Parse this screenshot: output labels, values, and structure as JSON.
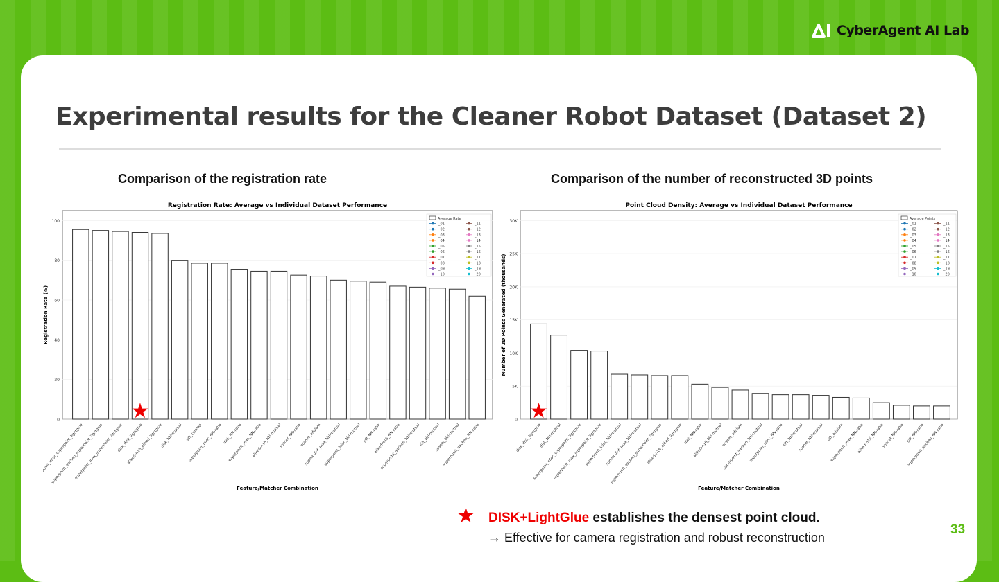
{
  "header": {
    "logo_text": "CyberAgent AI Lab"
  },
  "slide": {
    "title": "Experimental results for the Cleaner Robot Dataset (Dataset 2)",
    "left_subtitle": "Comparison of the registration rate",
    "right_subtitle": "Comparison of the number of reconstructed 3D points",
    "note_highlight": "DISK+LightGlue",
    "note_rest": " establishes the densest point cloud.",
    "note_line2": "→ Effective for camera registration and robust reconstruction",
    "page_number": "33"
  },
  "colors": {
    "accent_green": "#5cbd14",
    "highlight_red": "#ee0000"
  },
  "series_legend": [
    {
      "name": "_01",
      "color": "#1f77b4",
      "marker": "x"
    },
    {
      "name": "_02",
      "color": "#1f77b4",
      "marker": "+"
    },
    {
      "name": "_03",
      "color": "#ff7f0e",
      "marker": "^"
    },
    {
      "name": "_04",
      "color": "#ff7f0e",
      "marker": "v"
    },
    {
      "name": "_05",
      "color": "#2ca02c",
      "marker": "<"
    },
    {
      "name": "_06",
      "color": "#2ca02c",
      "marker": ">"
    },
    {
      "name": "_07",
      "color": "#d62728",
      "marker": "s"
    },
    {
      "name": "_08",
      "color": "#d62728",
      "marker": "D"
    },
    {
      "name": "_09",
      "color": "#9467bd",
      "marker": "*"
    },
    {
      "name": "_10",
      "color": "#9467bd",
      "marker": "o"
    },
    {
      "name": "_11",
      "color": "#8c564b",
      "marker": "x"
    },
    {
      "name": "_12",
      "color": "#8c564b",
      "marker": "+"
    },
    {
      "name": "_13",
      "color": "#e377c2",
      "marker": "^"
    },
    {
      "name": "_14",
      "color": "#e377c2",
      "marker": "v"
    },
    {
      "name": "_15",
      "color": "#7f7f7f",
      "marker": "<"
    },
    {
      "name": "_16",
      "color": "#7f7f7f",
      "marker": ">"
    },
    {
      "name": "_17",
      "color": "#bcbd22",
      "marker": "s"
    },
    {
      "name": "_18",
      "color": "#bcbd22",
      "marker": "D"
    },
    {
      "name": "_19",
      "color": "#17becf",
      "marker": "*"
    },
    {
      "name": "_20",
      "color": "#17becf",
      "marker": "o"
    }
  ],
  "chart_data": [
    {
      "type": "bar",
      "title": "Registration Rate: Average vs Individual Dataset Performance",
      "xlabel": "Feature/Matcher Combination",
      "ylabel": "Registration Rate (%)",
      "ylim": [
        0,
        105
      ],
      "yticks": [
        "0",
        "20",
        "40",
        "60",
        "80",
        "100"
      ],
      "legend_label": "Average Rate",
      "legend_position": "top-right",
      "highlight_index": 3,
      "categories": [
        "superpoint_inloc_superpoint_lightglue",
        "superpoint_aachen_superpoint_lightglue",
        "superpoint_max_superpoint_lightglue",
        "disk_disk_lightglue",
        "aliked-n16_aliked_lightglue",
        "disk_NN-mutual",
        "sift_colmap",
        "superpoint_inloc_NN-ratio",
        "disk_NN-ratio",
        "superpoint_max_NN-ratio",
        "aliked-n16_NN-mutual",
        "sosnet_NN-ratio",
        "sosnet_adalam",
        "superpoint_max_NN-mutual",
        "superpoint_inloc_NN-mutual",
        "sift_NN-ratio",
        "aliked-n16_NN-ratio",
        "superpoint_aachen_NN-mutual",
        "sift_NN-mutual",
        "sosnet_NN-mutual",
        "superpoint_aachen_NN-ratio"
      ],
      "values": [
        95.5,
        95,
        94.5,
        94,
        93.5,
        80,
        78.5,
        78.5,
        75.5,
        74.5,
        74.5,
        72.5,
        72,
        70,
        69.5,
        69,
        67,
        66.5,
        66,
        65.5,
        62
      ]
    },
    {
      "type": "bar",
      "title": "Point Cloud Density: Average vs Individual Dataset Performance",
      "xlabel": "Feature/Matcher Combination",
      "ylabel": "Number of 3D Points Generated (thousands)",
      "ylim": [
        0,
        31.5
      ],
      "yticks": [
        "0",
        "5K",
        "10K",
        "15K",
        "20K",
        "25K",
        "30K"
      ],
      "legend_label": "Average Points",
      "legend_position": "top-right",
      "highlight_index": 0,
      "categories": [
        "disk_disk_lightglue",
        "disk_NN-mutual",
        "superpoint_inloc_superpoint_lightglue",
        "superpoint_max_superpoint_lightglue",
        "superpoint_inloc_NN-mutual",
        "superpoint_max_NN-mutual",
        "superpoint_aachen_superpoint_lightglue",
        "aliked-n16_aliked_lightglue",
        "disk_NN-ratio",
        "aliked-n16_NN-mutual",
        "sosnet_adalam",
        "superpoint_aachen_NN-mutual",
        "superpoint_inloc_NN-ratio",
        "sift_NN-mutual",
        "sosnet_NN-mutual",
        "sift_adalam",
        "superpoint_max_NN-ratio",
        "aliked-n16_NN-ratio",
        "sosnet_NN-ratio",
        "sift_NN-ratio",
        "superpoint_aachen_NN-ratio"
      ],
      "values": [
        14.4,
        12.7,
        10.4,
        10.3,
        6.8,
        6.7,
        6.6,
        6.6,
        5.3,
        4.8,
        4.4,
        3.9,
        3.7,
        3.7,
        3.6,
        3.3,
        3.2,
        2.5,
        2.1,
        2.0,
        2.0
      ]
    }
  ]
}
